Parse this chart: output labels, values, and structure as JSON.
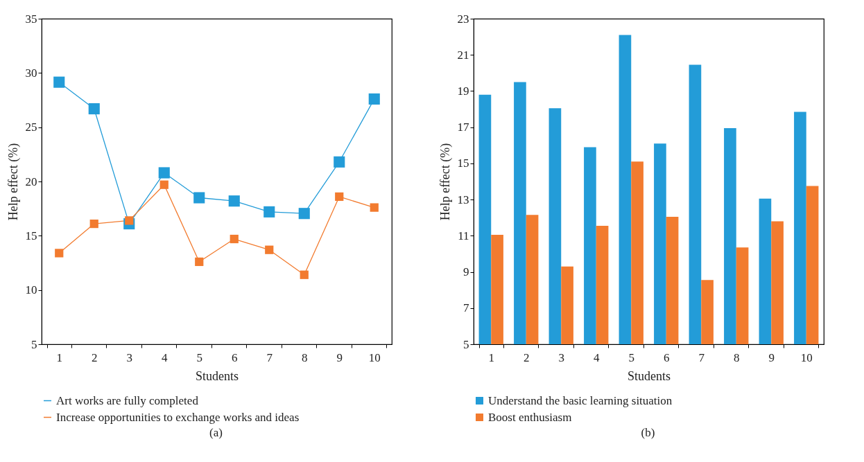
{
  "chart_data": [
    {
      "type": "line",
      "xlabel": "Students",
      "ylabel": "Help effect (%)",
      "categories": [
        "1",
        "2",
        "3",
        "4",
        "5",
        "6",
        "7",
        "8",
        "9",
        "10"
      ],
      "series": [
        {
          "name": "Art works are fully completed",
          "color": "#239cd8",
          "values": [
            29.15,
            26.7,
            16.1,
            20.8,
            18.5,
            18.2,
            17.2,
            17.05,
            21.8,
            27.6
          ]
        },
        {
          "name": "Increase opportunities to exchange works and ideas",
          "color": "#f27b2f",
          "values": [
            13.4,
            16.1,
            16.4,
            19.7,
            12.6,
            14.7,
            13.7,
            11.4,
            18.6,
            17.6
          ]
        }
      ],
      "ylim": [
        5,
        35
      ],
      "yticks": [
        5,
        10,
        15,
        20,
        25,
        30,
        35
      ],
      "grid": false,
      "legend": "bottom",
      "marker": "square",
      "line_style": "solid",
      "annotations": [
        "(a)"
      ]
    },
    {
      "type": "bar",
      "xlabel": "Students",
      "ylabel": "Help effect (%)",
      "categories": [
        "1",
        "2",
        "3",
        "4",
        "5",
        "6",
        "7",
        "8",
        "9",
        "10"
      ],
      "series": [
        {
          "name": "Understand the basic learning situation",
          "color": "#239cd8",
          "values": [
            18.8,
            19.5,
            18.05,
            15.9,
            22.1,
            16.1,
            20.45,
            16.95,
            13.05,
            17.85
          ]
        },
        {
          "name": "Boost enthusiasm",
          "color": "#f27b2f",
          "values": [
            11.05,
            12.15,
            9.3,
            11.55,
            15.1,
            12.05,
            8.55,
            10.35,
            11.8,
            13.75
          ]
        }
      ],
      "ylim": [
        5,
        23
      ],
      "yticks": [
        5,
        7,
        9,
        11,
        13,
        15,
        17,
        19,
        21,
        23
      ],
      "grid": false,
      "legend": "bottom",
      "annotations": [
        "(b)"
      ]
    }
  ]
}
